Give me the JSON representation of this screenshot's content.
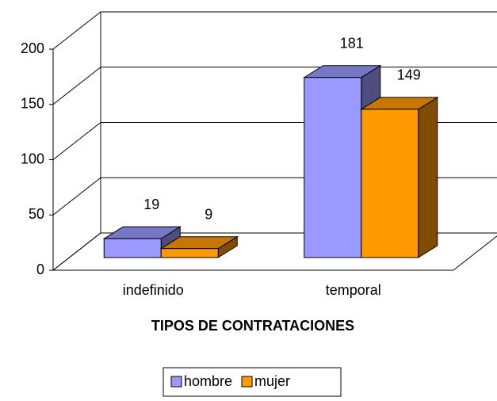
{
  "chart_data": {
    "type": "bar3d",
    "x_label": "TIPOS DE CONTRATACIONES",
    "categories": [
      "indefinido",
      "temporal"
    ],
    "series": [
      {
        "name": "hombre",
        "color": "#9999ff",
        "values": [
          19,
          181
        ]
      },
      {
        "name": "mujer",
        "color": "#ff9900",
        "values": [
          9,
          149
        ]
      }
    ],
    "ylim": [
      0,
      200
    ],
    "yticks": [
      0,
      50,
      100,
      150,
      200
    ],
    "grid": true,
    "legend": "bottom"
  }
}
